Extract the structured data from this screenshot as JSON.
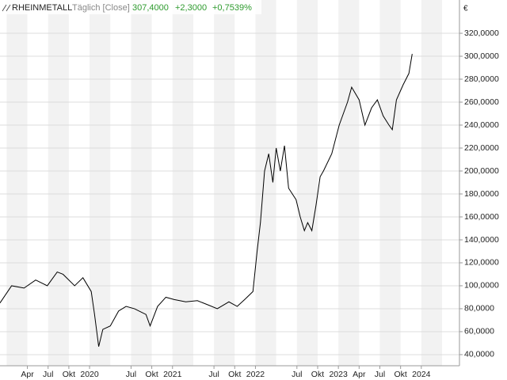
{
  "chart_data": {
    "type": "line",
    "title": "RHEINMETALL",
    "subtitle": "Täglich [Close]",
    "last_price": "307,4000",
    "change": "+2,3000",
    "change_pct": "+0,7539%",
    "y_unit": "€",
    "x": [
      2018.92,
      2019.06,
      2019.21,
      2019.35,
      2019.49,
      2019.61,
      2019.68,
      2019.82,
      2019.92,
      2020.02,
      2020.06,
      2020.11,
      2020.16,
      2020.25,
      2020.35,
      2020.44,
      2020.54,
      2020.68,
      2020.73,
      2020.82,
      2020.92,
      2021.02,
      2021.16,
      2021.3,
      2021.44,
      2021.54,
      2021.68,
      2021.78,
      2021.87,
      2021.97,
      2022.02,
      2022.06,
      2022.11,
      2022.16,
      2022.21,
      2022.25,
      2022.3,
      2022.35,
      2022.4,
      2022.49,
      2022.54,
      2022.59,
      2022.63,
      2022.68,
      2022.73,
      2022.78,
      2022.82,
      2022.92,
      2023.01,
      2023.11,
      2023.16,
      2023.25,
      2023.32,
      2023.4,
      2023.47,
      2023.54,
      2023.61,
      2023.65,
      2023.7,
      2023.78,
      2023.85,
      2023.89
    ],
    "series": [
      {
        "name": "RHEINMETALL",
        "color": "#000000",
        "values": [
          85,
          100,
          98,
          105,
          100,
          112,
          110,
          100,
          107,
          95,
          75,
          47,
          62,
          65,
          78,
          82,
          80,
          75,
          65,
          82,
          90,
          88,
          86,
          87,
          83,
          80,
          86,
          82,
          88,
          95,
          130,
          155,
          200,
          215,
          190,
          220,
          200,
          222,
          185,
          175,
          160,
          148,
          155,
          148,
          170,
          195,
          200,
          215,
          240,
          260,
          273,
          262,
          240,
          255,
          262,
          248,
          240,
          236,
          262,
          275,
          285,
          302
        ]
      }
    ],
    "xlim": [
      2018.92,
      2024.46
    ],
    "xticks": [
      {
        "value": 2019.25,
        "label": "Apr"
      },
      {
        "value": 2019.5,
        "label": "Jul"
      },
      {
        "value": 2019.75,
        "label": "Okt"
      },
      2020,
      {
        "value": 2020.5,
        "label": "Jul"
      },
      {
        "value": 2020.75,
        "label": "Okt"
      },
      2021,
      {
        "value": 2021.5,
        "label": "Jul"
      },
      {
        "value": 2021.75,
        "label": "Okt"
      },
      2022,
      {
        "value": 2022.5,
        "label": "Jul"
      },
      {
        "value": 2022.75,
        "label": "Okt"
      },
      2023,
      {
        "value": 2023.25,
        "label": "Apr"
      },
      {
        "value": 2023.5,
        "label": "Jul"
      },
      {
        "value": 2023.75,
        "label": "Okt"
      },
      2024
    ],
    "ylim": [
      30.3,
      349
    ],
    "yticks": [
      {
        "value": 40,
        "label": "40,0000"
      },
      {
        "value": 60,
        "label": "60,0000"
      },
      {
        "value": 80,
        "label": "80,0000"
      },
      {
        "value": 100,
        "label": "100,0000"
      },
      {
        "value": 120,
        "label": "120,0000"
      },
      {
        "value": 140,
        "label": "140,0000"
      },
      {
        "value": 160,
        "label": "160,0000"
      },
      {
        "value": 180,
        "label": "180,0000"
      },
      {
        "value": 200,
        "label": "200,0000"
      },
      {
        "value": 220,
        "label": "220,0000"
      },
      {
        "value": 240,
        "label": "240,0000"
      },
      {
        "value": 260,
        "label": "260,0000"
      },
      {
        "value": 280,
        "label": "280,0000"
      },
      {
        "value": 300,
        "label": "300,0000"
      },
      {
        "value": 320,
        "label": "320,0000"
      }
    ],
    "grid": true
  }
}
